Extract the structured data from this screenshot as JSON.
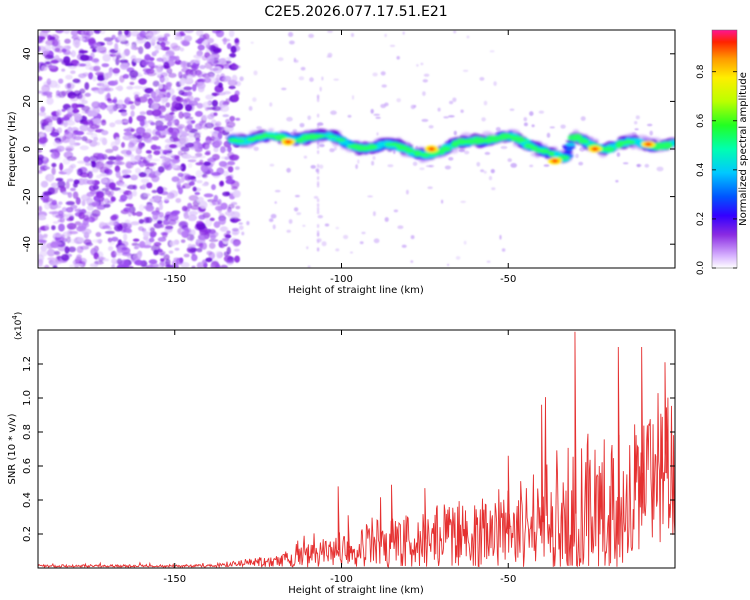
{
  "title": "C2E5.2026.077.17.51.E21",
  "colors": {
    "axis": "#000000",
    "snr_line": "#e53030",
    "scatter_color": "#8a2be2"
  },
  "chart_data": [
    {
      "type": "heatmap",
      "title": "C2E5.2026.077.17.51.E21",
      "xlabel": "Height of straight line (km)",
      "ylabel": "Frequency (Hz)",
      "xlim": [
        -191,
        0
      ],
      "ylim": [
        -50,
        50
      ],
      "x_ticks": [
        -150,
        -100,
        -50
      ],
      "y_ticks": [
        -40,
        -20,
        0,
        20,
        40
      ],
      "signal_track": {
        "x": [
          -133,
          -120,
          -110,
          -100,
          -90,
          -80,
          -70,
          -60,
          -50,
          -40,
          -33,
          -30,
          -20,
          -10,
          0
        ],
        "freq": [
          5,
          4,
          6,
          3,
          1,
          0,
          -2,
          5,
          4,
          1,
          -5,
          4,
          1,
          2,
          3
        ]
      },
      "peaks": [
        {
          "x": -116,
          "freq": 3
        },
        {
          "x": -73,
          "freq": 0
        },
        {
          "x": -36,
          "freq": -5
        },
        {
          "x": -24,
          "freq": 0
        },
        {
          "x": -8,
          "freq": 2
        }
      ],
      "colorbar": {
        "label": "Normalized spectral amplitude",
        "range": [
          0,
          0.97
        ],
        "ticks": [
          0.0,
          0.2,
          0.4,
          0.6,
          0.8
        ]
      }
    },
    {
      "type": "line",
      "xlabel": "Height of straight line (km)",
      "ylabel": "SNR (10 * v/v)",
      "y_scale_label": "(x10",
      "y_scale_exp": "4",
      "xlim": [
        -191,
        0
      ],
      "ylim": [
        0,
        1.4
      ],
      "x_ticks": [
        -150,
        -100,
        -50
      ],
      "y_ticks": [
        0.2,
        0.4,
        0.6,
        0.8,
        1.0,
        1.2
      ],
      "envelope": {
        "x": [
          -191,
          -140,
          -130,
          -120,
          -110,
          -100,
          -90,
          -80,
          -70,
          -60,
          -50,
          -40,
          -30,
          -20,
          -10,
          0
        ],
        "mean": [
          0.01,
          0.01,
          0.03,
          0.04,
          0.07,
          0.11,
          0.14,
          0.16,
          0.18,
          0.2,
          0.23,
          0.27,
          0.32,
          0.37,
          0.46,
          0.6
        ],
        "amp": [
          0.01,
          0.01,
          0.02,
          0.04,
          0.07,
          0.1,
          0.14,
          0.17,
          0.2,
          0.22,
          0.26,
          0.32,
          0.42,
          0.4,
          0.42,
          0.45
        ]
      },
      "spikes": [
        {
          "x": -101,
          "y": 0.48
        },
        {
          "x": -98,
          "y": 0.31
        },
        {
          "x": -85,
          "y": 0.49
        },
        {
          "x": -75,
          "y": 0.47
        },
        {
          "x": -50,
          "y": 0.66
        },
        {
          "x": -40,
          "y": 0.96
        },
        {
          "x": -30,
          "y": 1.39
        },
        {
          "x": -17,
          "y": 1.3
        },
        {
          "x": -10,
          "y": 1.3
        },
        {
          "x": -3,
          "y": 1.21
        },
        {
          "x": 0,
          "y": 1.18
        }
      ]
    }
  ]
}
